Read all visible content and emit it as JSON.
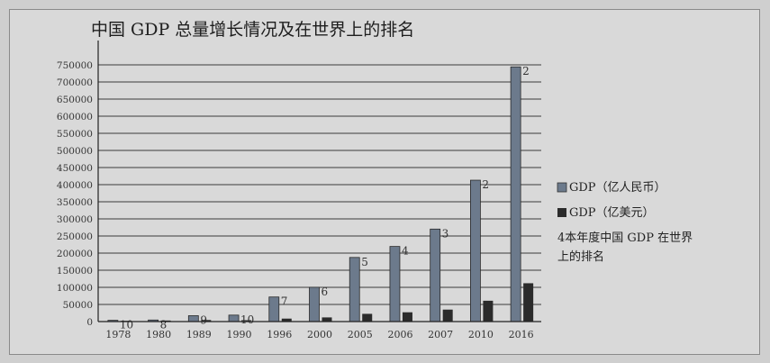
{
  "chart_data": {
    "type": "bar",
    "title": "中国 GDP 总量增长情况及在世界上的排名",
    "categories": [
      "1978",
      "1980",
      "1989",
      "1990",
      "1996",
      "2000",
      "2005",
      "2006",
      "2007",
      "2010",
      "2016"
    ],
    "series": [
      {
        "name": "GDP（亿人民币）",
        "color": "#6c7a8c",
        "values": [
          3679,
          4546,
          17180,
          18873,
          71814,
          100280,
          187319,
          219439,
          270232,
          413030,
          744127
        ]
      },
      {
        "name": "GDP（亿美元）",
        "color": "#2b2b2b",
        "values": [
          2186,
          3052,
          4569,
          3949,
          8638,
          12113,
          22569,
          27129,
          34941,
          60871,
          111991
        ]
      }
    ],
    "rank_series_name": "4本年度中国 GDP 在世界上的排名",
    "rank_labels": [
      "10",
      "8",
      "9",
      "10",
      "7",
      "6",
      "5",
      "4",
      "3",
      "2",
      "2"
    ],
    "ylim": [
      0,
      800000
    ],
    "yticks": [
      0,
      50000,
      100000,
      150000,
      200000,
      250000,
      300000,
      350000,
      400000,
      450000,
      500000,
      550000,
      600000,
      650000,
      700000,
      750000
    ],
    "grid": true,
    "legend_position": "right"
  }
}
